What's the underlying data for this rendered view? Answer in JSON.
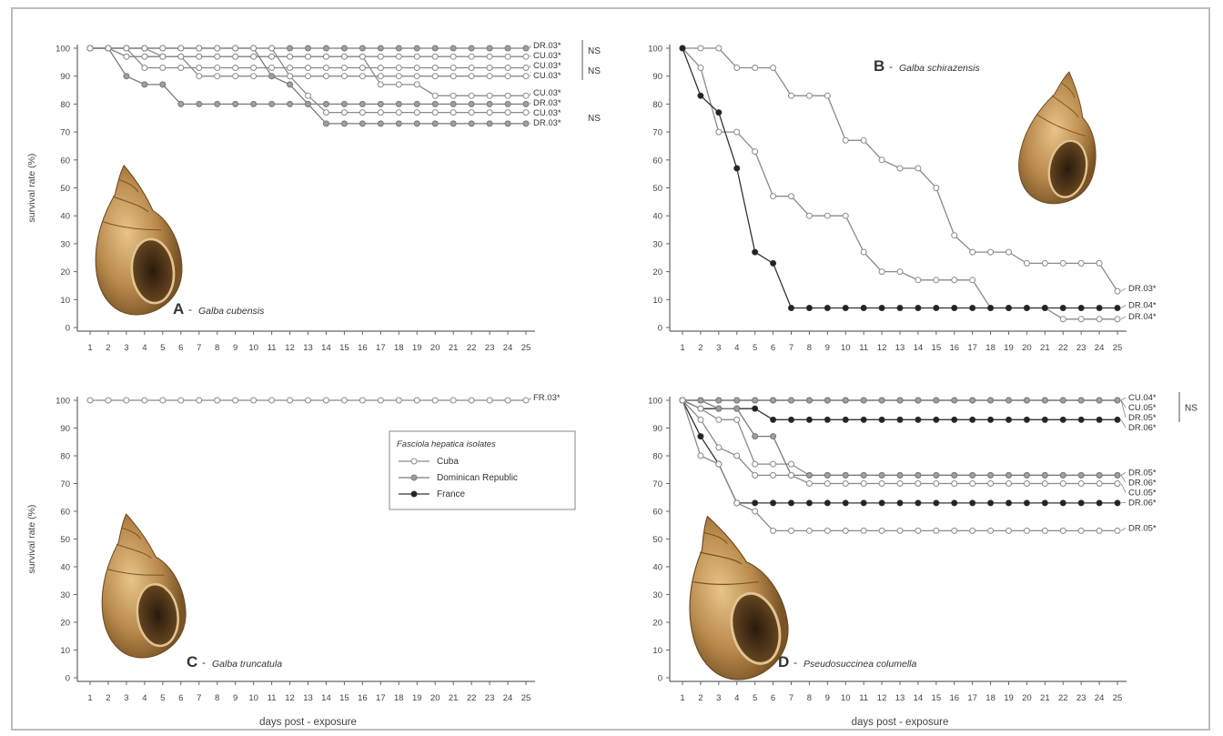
{
  "figure": {
    "ylabel": "survival rate (%)",
    "xlabel": "days post - exposure",
    "legend": {
      "title": "Fasciola hepatica isolates",
      "items": [
        {
          "label": "Cuba",
          "color": "#8a8a8a",
          "fill": "#ffffff"
        },
        {
          "label": "Dominican Republic",
          "color": "#7a7a7a",
          "fill": "#9e9e9e"
        },
        {
          "label": "France",
          "color": "#333333",
          "fill": "#222222"
        }
      ]
    },
    "ns_label": "NS",
    "xticks": [
      "1",
      "2",
      "3",
      "4",
      "5",
      "6",
      "7",
      "8",
      "9",
      "10",
      "11",
      "12",
      "13",
      "14",
      "15",
      "16",
      "17",
      "18",
      "19",
      "20",
      "21",
      "22",
      "23",
      "24",
      "25"
    ],
    "yticks": [
      "0",
      "10",
      "20",
      "30",
      "40",
      "50",
      "60",
      "70",
      "80",
      "90",
      "100"
    ]
  },
  "chart_data": [
    {
      "type": "line",
      "panel_letter": "A",
      "panel_title": "Galba cubensis",
      "x": [
        1,
        2,
        3,
        4,
        5,
        6,
        7,
        8,
        9,
        10,
        11,
        12,
        13,
        14,
        15,
        16,
        17,
        18,
        19,
        20,
        21,
        22,
        23,
        24,
        25
      ],
      "ylim": [
        0,
        100
      ],
      "series": [
        {
          "name": "DR.03*",
          "isolate": "Dominican Republic",
          "values": [
            100,
            100,
            100,
            100,
            100,
            100,
            100,
            100,
            100,
            100,
            100,
            100,
            100,
            100,
            100,
            100,
            100,
            100,
            100,
            100,
            100,
            100,
            100,
            100,
            100
          ]
        },
        {
          "name": "CU.03*",
          "isolate": "Cuba",
          "values": [
            100,
            100,
            100,
            100,
            97,
            97,
            97,
            97,
            97,
            97,
            97,
            97,
            97,
            97,
            97,
            97,
            97,
            97,
            97,
            97,
            97,
            97,
            97,
            97,
            97
          ]
        },
        {
          "name": "CU.03*",
          "isolate": "Cuba",
          "values": [
            100,
            100,
            100,
            93,
            93,
            93,
            93,
            93,
            93,
            93,
            93,
            93,
            93,
            93,
            93,
            93,
            93,
            93,
            93,
            93,
            93,
            93,
            93,
            93,
            93
          ]
        },
        {
          "name": "CU.03*",
          "isolate": "Cuba",
          "values": [
            100,
            100,
            97,
            97,
            97,
            97,
            90,
            90,
            90,
            90,
            90,
            90,
            90,
            90,
            90,
            90,
            90,
            90,
            90,
            90,
            90,
            90,
            90,
            90,
            90
          ]
        },
        {
          "name": "CU.03*",
          "isolate": "Cuba",
          "values": [
            100,
            100,
            97,
            97,
            97,
            97,
            97,
            97,
            97,
            97,
            97,
            97,
            97,
            97,
            97,
            97,
            87,
            87,
            87,
            83,
            83,
            83,
            83,
            83,
            83
          ]
        },
        {
          "name": "DR.03*",
          "isolate": "Dominican Republic",
          "values": [
            100,
            100,
            90,
            87,
            87,
            80,
            80,
            80,
            80,
            80,
            80,
            80,
            80,
            80,
            80,
            80,
            80,
            80,
            80,
            80,
            80,
            80,
            80,
            80,
            80
          ]
        },
        {
          "name": "DR.03*",
          "isolate": "Dominican Republic",
          "values": [
            100,
            100,
            100,
            100,
            100,
            100,
            100,
            100,
            100,
            100,
            90,
            87,
            80,
            73,
            73,
            73,
            73,
            73,
            73,
            73,
            73,
            73,
            73,
            73,
            73
          ]
        },
        {
          "name": "CU.03*",
          "isolate": "Cuba",
          "values": [
            100,
            100,
            100,
            100,
            100,
            100,
            100,
            100,
            100,
            100,
            100,
            90,
            83,
            77,
            77,
            77,
            77,
            77,
            77,
            77,
            77,
            77,
            77,
            77,
            77
          ]
        }
      ]
    },
    {
      "type": "line",
      "panel_letter": "B",
      "panel_title": "Galba schirazensis",
      "x": [
        1,
        2,
        3,
        4,
        5,
        6,
        7,
        8,
        9,
        10,
        11,
        12,
        13,
        14,
        15,
        16,
        17,
        18,
        19,
        20,
        21,
        22,
        23,
        24,
        25
      ],
      "ylim": [
        0,
        100
      ],
      "series": [
        {
          "name": "DR.03*",
          "isolate": "Cuba",
          "values": [
            100,
            100,
            100,
            93,
            93,
            93,
            83,
            83,
            83,
            67,
            67,
            60,
            57,
            57,
            50,
            33,
            27,
            27,
            27,
            23,
            23,
            23,
            23,
            23,
            13
          ]
        },
        {
          "name": "DR.04*",
          "isolate": "Cuba",
          "values": [
            100,
            93,
            70,
            70,
            63,
            47,
            47,
            40,
            40,
            40,
            27,
            20,
            20,
            17,
            17,
            17,
            17,
            7,
            7,
            7,
            7,
            3,
            3,
            3,
            3
          ]
        },
        {
          "name": "DR.04*",
          "isolate": "France",
          "values": [
            100,
            83,
            77,
            57,
            27,
            23,
            7,
            7,
            7,
            7,
            7,
            7,
            7,
            7,
            7,
            7,
            7,
            7,
            7,
            7,
            7,
            7,
            7,
            7,
            7
          ]
        }
      ]
    },
    {
      "type": "line",
      "panel_letter": "C",
      "panel_title": "Galba truncatula",
      "x": [
        1,
        2,
        3,
        4,
        5,
        6,
        7,
        8,
        9,
        10,
        11,
        12,
        13,
        14,
        15,
        16,
        17,
        18,
        19,
        20,
        21,
        22,
        23,
        24,
        25
      ],
      "ylim": [
        0,
        100
      ],
      "series": [
        {
          "name": "FR.03*",
          "isolate": "Cuba",
          "values": [
            100,
            100,
            100,
            100,
            100,
            100,
            100,
            100,
            100,
            100,
            100,
            100,
            100,
            100,
            100,
            100,
            100,
            100,
            100,
            100,
            100,
            100,
            100,
            100,
            100
          ]
        }
      ]
    },
    {
      "type": "line",
      "panel_letter": "D",
      "panel_title": "Pseudosuccinea columella",
      "x": [
        1,
        2,
        3,
        4,
        5,
        6,
        7,
        8,
        9,
        10,
        11,
        12,
        13,
        14,
        15,
        16,
        17,
        18,
        19,
        20,
        21,
        22,
        23,
        24,
        25
      ],
      "ylim": [
        0,
        100
      ],
      "series": [
        {
          "name": "CU.04*",
          "isolate": "Cuba",
          "values": [
            100,
            100,
            100,
            100,
            100,
            100,
            100,
            100,
            100,
            100,
            100,
            100,
            100,
            100,
            100,
            100,
            100,
            100,
            100,
            100,
            100,
            100,
            100,
            100,
            100
          ]
        },
        {
          "name": "CU.05*",
          "isolate": "Cuba",
          "values": [
            100,
            100,
            100,
            100,
            100,
            100,
            100,
            100,
            100,
            100,
            100,
            100,
            100,
            100,
            100,
            100,
            100,
            100,
            100,
            100,
            100,
            100,
            100,
            100,
            100
          ]
        },
        {
          "name": "DR.05*",
          "isolate": "Dominican Republic",
          "values": [
            100,
            100,
            100,
            100,
            100,
            100,
            100,
            100,
            100,
            100,
            100,
            100,
            100,
            100,
            100,
            100,
            100,
            100,
            100,
            100,
            100,
            100,
            100,
            100,
            100
          ]
        },
        {
          "name": "DR.06*",
          "isolate": "France",
          "values": [
            100,
            97,
            97,
            97,
            97,
            93,
            93,
            93,
            93,
            93,
            93,
            93,
            93,
            93,
            93,
            93,
            93,
            93,
            93,
            93,
            93,
            93,
            93,
            93,
            93
          ]
        },
        {
          "name": "DR.05*",
          "isolate": "Cuba",
          "values": [
            100,
            97,
            93,
            93,
            77,
            77,
            77,
            73,
            73,
            73,
            73,
            73,
            73,
            73,
            73,
            73,
            73,
            73,
            73,
            73,
            73,
            73,
            73,
            73,
            73
          ]
        },
        {
          "name": "DR.06*",
          "isolate": "Dominican Republic",
          "values": [
            100,
            100,
            97,
            97,
            87,
            87,
            73,
            73,
            73,
            73,
            73,
            73,
            73,
            73,
            73,
            73,
            73,
            73,
            73,
            73,
            73,
            73,
            73,
            73,
            73
          ]
        },
        {
          "name": "CU.05*",
          "isolate": "Cuba",
          "values": [
            100,
            93,
            83,
            80,
            73,
            73,
            73,
            70,
            70,
            70,
            70,
            70,
            70,
            70,
            70,
            70,
            70,
            70,
            70,
            70,
            70,
            70,
            70,
            70,
            70
          ]
        },
        {
          "name": "DR.06*",
          "isolate": "France",
          "values": [
            100,
            87,
            77,
            63,
            63,
            63,
            63,
            63,
            63,
            63,
            63,
            63,
            63,
            63,
            63,
            63,
            63,
            63,
            63,
            63,
            63,
            63,
            63,
            63,
            63
          ]
        },
        {
          "name": "DR.05*",
          "isolate": "Cuba",
          "values": [
            100,
            80,
            77,
            63,
            60,
            53,
            53,
            53,
            53,
            53,
            53,
            53,
            53,
            53,
            53,
            53,
            53,
            53,
            53,
            53,
            53,
            53,
            53,
            53,
            53
          ]
        }
      ]
    }
  ]
}
